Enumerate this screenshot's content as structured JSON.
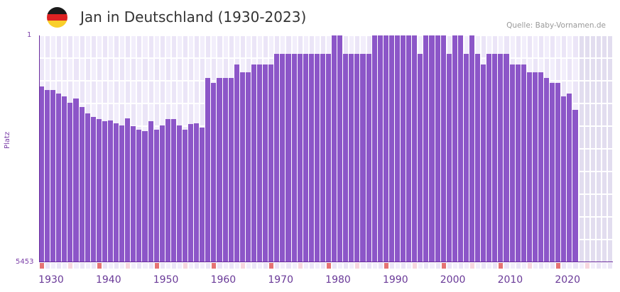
{
  "header": {
    "flag": "germany-flag",
    "flag_colors": [
      "#1a1a1a",
      "#dd2222",
      "#f9cf2a"
    ],
    "title": "Jan in Deutschland (1930-2023)",
    "source": "Quelle: Baby-Vornamen.de"
  },
  "colors": {
    "bar": "#8c56c8",
    "axis": "#6a2c9e",
    "marker_decade": "#e57373",
    "marker_half": "#f7d6df",
    "grid_a": "#f2eefb",
    "grid_b": "#ebe5f7",
    "future_shade": "#e2ddef"
  },
  "chart_data": {
    "type": "bar",
    "title": "Jan in Deutschland (1930-2023)",
    "xlabel": "",
    "ylabel": "Platz",
    "y_axis_inverted": true,
    "y_scale": "log",
    "ylim": [
      1,
      5453
    ],
    "ytick_labels": [
      "1",
      "5453"
    ],
    "xtick_labels": [
      "1930",
      "1940",
      "1950",
      "1960",
      "1970",
      "1980",
      "1990",
      "2000",
      "2010",
      "2020"
    ],
    "x_range": [
      1930,
      2029
    ],
    "future_shaded_from": 2024,
    "grid": true,
    "legend": null,
    "categories": [
      1930,
      1931,
      1932,
      1933,
      1934,
      1935,
      1936,
      1937,
      1938,
      1939,
      1940,
      1941,
      1942,
      1943,
      1944,
      1945,
      1946,
      1947,
      1948,
      1949,
      1950,
      1951,
      1952,
      1953,
      1954,
      1955,
      1956,
      1957,
      1958,
      1959,
      1960,
      1961,
      1962,
      1963,
      1964,
      1965,
      1966,
      1967,
      1968,
      1969,
      1970,
      1971,
      1972,
      1973,
      1974,
      1975,
      1976,
      1977,
      1978,
      1979,
      1980,
      1981,
      1982,
      1983,
      1984,
      1985,
      1986,
      1987,
      1988,
      1989,
      1990,
      1991,
      1992,
      1993,
      1994,
      1995,
      1996,
      1997,
      1998,
      1999,
      2000,
      2001,
      2002,
      2003,
      2004,
      2005,
      2006,
      2007,
      2008,
      2009,
      2010,
      2011,
      2012,
      2013,
      2014,
      2015,
      2016,
      2017,
      2018,
      2019,
      2020,
      2021,
      2022,
      2023
    ],
    "values": [
      7,
      8,
      8,
      9,
      10,
      13,
      11,
      15,
      19,
      22,
      24,
      26,
      25,
      28,
      30,
      23,
      31,
      36,
      38,
      26,
      36,
      30,
      24,
      24,
      30,
      36,
      29,
      28,
      33,
      5,
      6,
      5,
      5,
      5,
      3,
      4,
      4,
      3,
      3,
      3,
      3,
      2,
      2,
      2,
      2,
      2,
      2,
      2,
      2,
      2,
      2,
      1,
      1,
      2,
      2,
      2,
      2,
      2,
      1,
      1,
      1,
      1,
      1,
      1,
      1,
      1,
      2,
      1,
      1,
      1,
      1,
      2,
      1,
      1,
      2,
      1,
      2,
      3,
      2,
      2,
      2,
      2,
      3,
      3,
      3,
      4,
      4,
      4,
      5,
      6,
      6,
      10,
      9,
      17
    ],
    "series": [
      {
        "name": "Platz",
        "values": [
          7,
          8,
          8,
          9,
          10,
          13,
          11,
          15,
          19,
          22,
          24,
          26,
          25,
          28,
          30,
          23,
          31,
          36,
          38,
          26,
          36,
          30,
          24,
          24,
          30,
          36,
          29,
          28,
          33,
          5,
          6,
          5,
          5,
          5,
          3,
          4,
          4,
          3,
          3,
          3,
          3,
          2,
          2,
          2,
          2,
          2,
          2,
          2,
          2,
          2,
          2,
          1,
          1,
          2,
          2,
          2,
          2,
          2,
          1,
          1,
          1,
          1,
          1,
          1,
          1,
          1,
          2,
          1,
          1,
          1,
          1,
          2,
          1,
          1,
          2,
          1,
          2,
          3,
          2,
          2,
          2,
          2,
          3,
          3,
          3,
          4,
          4,
          4,
          5,
          6,
          6,
          10,
          9,
          17
        ]
      }
    ]
  }
}
